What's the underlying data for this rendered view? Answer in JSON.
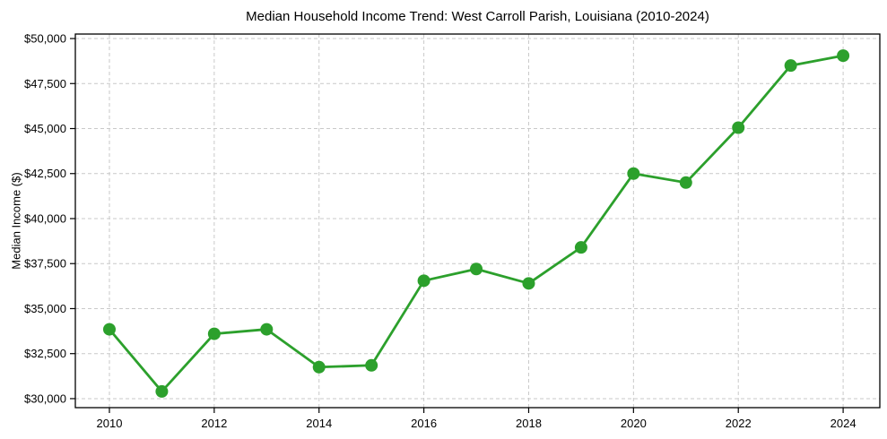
{
  "figure": {
    "title": "Median Household Income Trend: West Carroll Parish, Louisiana (2010-2024)",
    "ylabel": "Median Income ($)"
  },
  "chart_data": {
    "type": "line",
    "title": "Median Household Income Trend: West Carroll Parish, Louisiana (2010-2024)",
    "xlabel": "",
    "ylabel": "Median Income ($)",
    "x": [
      2010,
      2011,
      2012,
      2013,
      2014,
      2015,
      2016,
      2017,
      2018,
      2019,
      2020,
      2021,
      2022,
      2023,
      2024
    ],
    "values": [
      33850,
      30400,
      33600,
      33850,
      31750,
      31850,
      36550,
      37200,
      36400,
      38400,
      42500,
      42000,
      45050,
      48500,
      49050
    ],
    "series_name": "Median household income",
    "xlim": [
      2009.35,
      2024.7
    ],
    "ylim": [
      29500,
      50250
    ],
    "xticks": [
      2010,
      2012,
      2014,
      2016,
      2018,
      2020,
      2022,
      2024
    ],
    "xtick_labels": [
      "2010",
      "2012",
      "2014",
      "2016",
      "2018",
      "2020",
      "2022",
      "2024"
    ],
    "yticks": [
      30000,
      32500,
      35000,
      37500,
      40000,
      42500,
      45000,
      47500,
      50000
    ],
    "ytick_labels": [
      "$30,000",
      "$32,500",
      "$35,000",
      "$37,500",
      "$40,000",
      "$42,500",
      "$45,000",
      "$47,500",
      "$50,000"
    ],
    "grid": true,
    "grid_style": "dashed",
    "grid_color": "#c9c9c9",
    "line_color": "#2ca02c",
    "marker": "circle",
    "marker_size": 7,
    "line_width": 2.8,
    "axis_color": "#000000",
    "background_color": "#ffffff",
    "legend": "none"
  }
}
